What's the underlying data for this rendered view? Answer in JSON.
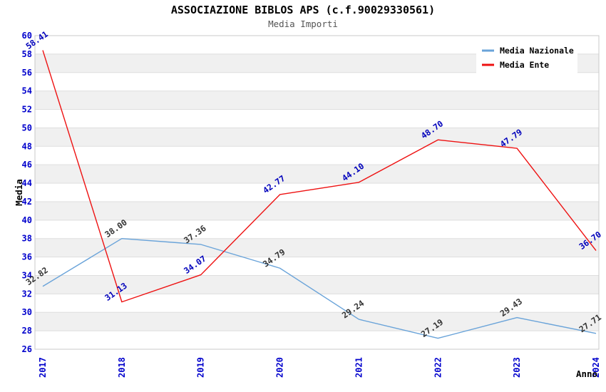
{
  "header": {
    "title": "ASSOCIAZIONE BIBLOS APS (c.f.90029330561)",
    "subtitle": "Media Importi"
  },
  "chart_data": {
    "type": "line",
    "title": "ASSOCIAZIONE BIBLOS APS (c.f.90029330561)",
    "subtitle": "Media Importi",
    "categories": [
      "2017",
      "2018",
      "2019",
      "2020",
      "2021",
      "2022",
      "2023",
      "2024"
    ],
    "series": [
      {
        "name": "Media Nazionale",
        "color": "#69a3d9",
        "label_color": "#333333",
        "values": [
          32.82,
          38.0,
          37.36,
          34.79,
          29.24,
          27.19,
          29.43,
          27.71
        ]
      },
      {
        "name": "Media Ente",
        "color": "#ee1111",
        "label_color": "#0000bb",
        "values": [
          58.41,
          31.13,
          34.07,
          42.77,
          44.1,
          48.7,
          47.79,
          36.7
        ]
      }
    ],
    "xlabel": "Anno",
    "ylabel": "Media",
    "ylim": [
      26,
      60
    ],
    "ytick_step": 2,
    "xtick_rotation_deg": 90,
    "point_label_decimals": 2,
    "legend_position": "top-right",
    "grid": "horizontal-bands"
  },
  "style": {
    "tick_label_color": "#0000cc",
    "axis_title_color": "#000000",
    "band_color": "#f0f0f0",
    "gridline_color": "#dedede",
    "plot_border_color": "#c9c9c9",
    "background_color": "#ffffff",
    "legend_background": "#ffffff",
    "legend_text_color": "#000000"
  }
}
